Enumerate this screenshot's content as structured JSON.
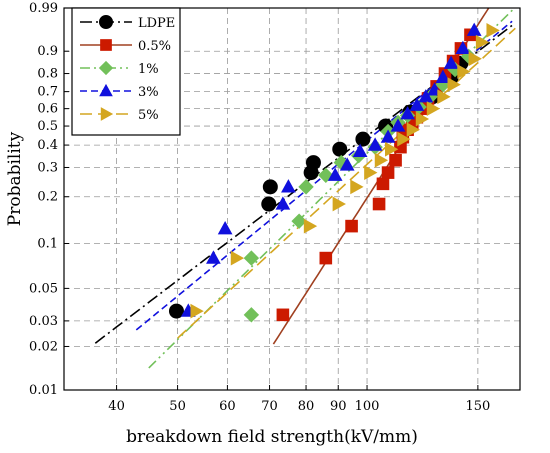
{
  "chart_data": {
    "type": "scatter",
    "title": "",
    "xlabel": "breakdown field strength(kV/mm)",
    "ylabel": "Probability",
    "x_scale": "log",
    "y_scale": "weibull",
    "xlim": [
      33,
      175
    ],
    "ylim": [
      0.01,
      0.99
    ],
    "x_ticks": [
      40,
      50,
      60,
      70,
      80,
      90,
      100,
      150
    ],
    "y_ticks": [
      0.01,
      0.02,
      0.03,
      0.05,
      0.1,
      0.2,
      0.3,
      0.4,
      0.5,
      0.6,
      0.7,
      0.8,
      0.9,
      0.99
    ],
    "y_tick_labels": [
      "0.01",
      "0.02",
      "0.03",
      "0.05",
      "0.1",
      "0.2",
      "0.3",
      "0.4",
      "0.5",
      "0.6",
      "0.7",
      "0.8",
      "0.9",
      "0.99"
    ],
    "grid": true,
    "legend_position": "top-left",
    "series": [
      {
        "name": "LDPE",
        "marker": "circle",
        "line_style": "dash-dot",
        "color": "#000000",
        "line_color": "#000000",
        "fit_x": [
          37,
          170
        ],
        "points": [
          [
            49.8,
            0.035
          ],
          [
            69.8,
            0.18
          ],
          [
            70.2,
            0.23
          ],
          [
            81.5,
            0.28
          ],
          [
            82.2,
            0.32
          ],
          [
            90.5,
            0.38
          ],
          [
            98.5,
            0.43
          ],
          [
            107,
            0.5
          ],
          [
            117,
            0.58
          ],
          [
            127,
            0.67
          ],
          [
            136,
            0.78
          ],
          [
            141,
            0.85
          ]
        ]
      },
      {
        "name": "0.5%",
        "marker": "square",
        "line_style": "solid",
        "color": "#cc1a00",
        "line_color": "#a04020",
        "fit_x": [
          71,
          172
        ],
        "points": [
          [
            73.5,
            0.033
          ],
          [
            86,
            0.08
          ],
          [
            94.5,
            0.13
          ],
          [
            104.5,
            0.18
          ],
          [
            106,
            0.24
          ],
          [
            108,
            0.28
          ],
          [
            111,
            0.33
          ],
          [
            113,
            0.39
          ],
          [
            114,
            0.44
          ],
          [
            116,
            0.48
          ],
          [
            118,
            0.51
          ],
          [
            120,
            0.55
          ],
          [
            122,
            0.6
          ],
          [
            125,
            0.66
          ],
          [
            129,
            0.73
          ],
          [
            133,
            0.8
          ],
          [
            137,
            0.86
          ],
          [
            141,
            0.91
          ],
          [
            146,
            0.95
          ]
        ]
      },
      {
        "name": "1%",
        "marker": "diamond",
        "line_style": "dash-dot-dot",
        "color": "#72c05a",
        "line_color": "#72c05a",
        "fit_x": [
          45,
          172
        ],
        "points": [
          [
            65.5,
            0.033
          ],
          [
            65.5,
            0.08
          ],
          [
            78,
            0.14
          ],
          [
            80,
            0.23
          ],
          [
            86,
            0.27
          ],
          [
            91,
            0.32
          ],
          [
            97,
            0.35
          ],
          [
            103,
            0.39
          ],
          [
            108,
            0.47
          ],
          [
            112,
            0.52
          ],
          [
            116,
            0.56
          ],
          [
            121,
            0.61
          ],
          [
            126,
            0.67
          ],
          [
            132,
            0.74
          ],
          [
            138,
            0.82
          ],
          [
            145,
            0.88
          ]
        ]
      },
      {
        "name": "3%",
        "marker": "triangle-up",
        "line_style": "dashed",
        "color": "#1010dd",
        "line_color": "#1010dd",
        "fit_x": [
          43,
          170
        ],
        "points": [
          [
            52,
            0.035
          ],
          [
            57,
            0.08
          ],
          [
            59.5,
            0.125
          ],
          [
            73.5,
            0.18
          ],
          [
            75,
            0.23
          ],
          [
            89,
            0.27
          ],
          [
            93,
            0.31
          ],
          [
            97.5,
            0.37
          ],
          [
            103,
            0.4
          ],
          [
            108,
            0.44
          ],
          [
            112,
            0.5
          ],
          [
            116,
            0.57
          ],
          [
            120,
            0.62
          ],
          [
            124,
            0.67
          ],
          [
            128,
            0.71
          ],
          [
            132,
            0.78
          ],
          [
            136,
            0.85
          ],
          [
            142,
            0.91
          ],
          [
            148,
            0.96
          ]
        ]
      },
      {
        "name": "5%",
        "marker": "triangle-right",
        "line_style": "long-dash",
        "color": "#d4a620",
        "line_color": "#d4a620",
        "fit_x": [
          50,
          172
        ],
        "points": [
          [
            53.5,
            0.035
          ],
          [
            62,
            0.08
          ],
          [
            81,
            0.13
          ],
          [
            90,
            0.18
          ],
          [
            96,
            0.23
          ],
          [
            101,
            0.28
          ],
          [
            105,
            0.33
          ],
          [
            109,
            0.38
          ],
          [
            114,
            0.43
          ],
          [
            118,
            0.48
          ],
          [
            122,
            0.54
          ],
          [
            127,
            0.6
          ],
          [
            132,
            0.67
          ],
          [
            137,
            0.74
          ],
          [
            142,
            0.81
          ],
          [
            148,
            0.87
          ],
          [
            152,
            0.93
          ],
          [
            158,
            0.96
          ]
        ]
      }
    ]
  }
}
